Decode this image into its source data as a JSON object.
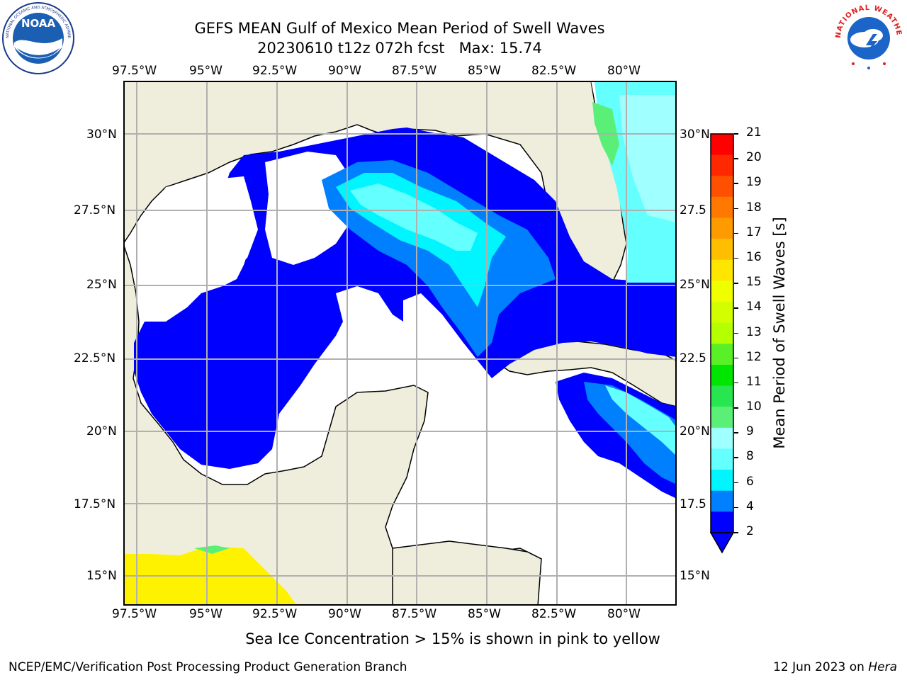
{
  "title": {
    "line1": "GEFS MEAN Gulf of Mexico Mean Period of Swell Waves",
    "line2": "20230610 t12z 072h fcst   Max: 15.74"
  },
  "logos": {
    "noaa_text": "NOAA",
    "noaa_ring": "NATIONAL OCEANIC AND ATMOSPHERIC ADMINISTRATION · U.S. DEPARTMENT OF COMMERCE",
    "nws_ring": "NATIONAL WEATHER SERVICE"
  },
  "map": {
    "lon_labels": [
      "97.5°W",
      "95°W",
      "92.5°W",
      "90°W",
      "87.5°W",
      "85°W",
      "82.5°W",
      "80°W"
    ],
    "lat_labels_left": [
      "30°N",
      "27.5°N",
      "25°N",
      "22.5°N",
      "20°N",
      "17.5°N",
      "15°N"
    ],
    "lat_labels_right": [
      "30°N",
      "27.5",
      "25°N",
      "22.5",
      "20°N",
      "17.5",
      "15°N"
    ]
  },
  "colorbar": {
    "label": "Mean Period of Swell Waves [s]",
    "ticks": [
      "21",
      "20",
      "19",
      "18",
      "17",
      "16",
      "15",
      "14",
      "13",
      "12",
      "11",
      "10",
      "9",
      "8",
      "6",
      "4",
      "2"
    ],
    "colors": [
      "#ff0000",
      "#ff2800",
      "#ff5000",
      "#ff7800",
      "#ff9b00",
      "#ffbe00",
      "#ffe600",
      "#f0ff00",
      "#d2ff00",
      "#b4ff00",
      "#5af028",
      "#00e600",
      "#28e650",
      "#5af078",
      "#a0ffff",
      "#64ffff",
      "#00f5ff",
      "#0080ff",
      "#0000ff"
    ]
  },
  "caption": "Sea Ice Concentration > 15% is shown in pink to yellow",
  "footer": {
    "left": "NCEP/EMC/Verification Post Processing Product Generation Branch",
    "right_date": "12 Jun 2023 on ",
    "right_host": "Hera"
  }
}
